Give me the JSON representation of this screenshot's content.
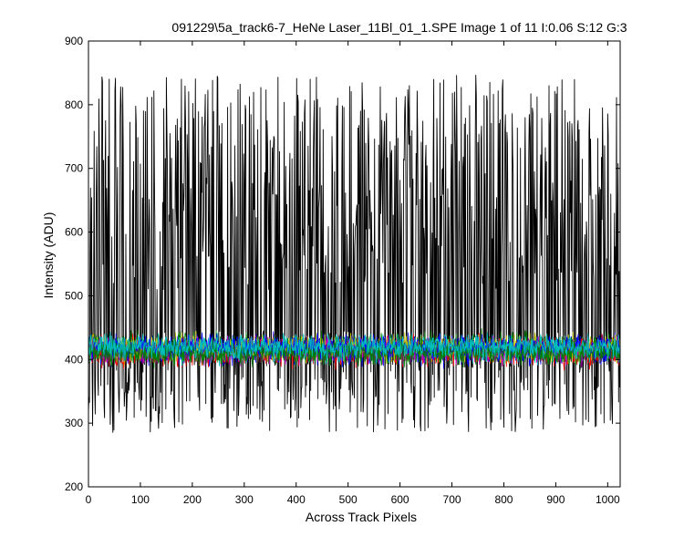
{
  "chart_data": {
    "type": "line",
    "title": "091229\\5a_track6-7_HeNe Laser_11Bl_01_1.SPE  Image 1 of 11  I:0.06  S:12  G:3",
    "xlabel": "Across Track Pixels",
    "ylabel": "Intensity (ADU)",
    "xlim": [
      0,
      1024
    ],
    "ylim": [
      200,
      900
    ],
    "xticks": [
      0,
      100,
      200,
      300,
      400,
      500,
      600,
      700,
      800,
      900,
      1000
    ],
    "yticks": [
      200,
      300,
      400,
      500,
      600,
      700,
      800,
      900
    ],
    "grid": false,
    "legend": "none",
    "n_points": 1024,
    "series": [
      {
        "color": "#000000",
        "baseline": 560,
        "spread": 260,
        "min": 285,
        "max": 865
      },
      {
        "color": "#0000ff",
        "baseline": 415,
        "spread": 22,
        "min": 380,
        "max": 455
      },
      {
        "color": "#008000",
        "baseline": 418,
        "spread": 22,
        "min": 380,
        "max": 460
      },
      {
        "color": "#ff0000",
        "baseline": 412,
        "spread": 22,
        "min": 380,
        "max": 455
      },
      {
        "color": "#00bfbf",
        "baseline": 416,
        "spread": 20,
        "min": 380,
        "max": 455
      },
      {
        "color": "#bf00bf",
        "baseline": 414,
        "spread": 20,
        "min": 380,
        "max": 450
      },
      {
        "color": "#bfbf00",
        "baseline": 417,
        "spread": 20,
        "min": 380,
        "max": 455
      },
      {
        "color": "#404040",
        "baseline": 413,
        "spread": 18,
        "min": 380,
        "max": 450
      },
      {
        "color": "#0000ff",
        "baseline": 419,
        "spread": 18,
        "min": 380,
        "max": 455
      },
      {
        "color": "#008000",
        "baseline": 411,
        "spread": 18,
        "min": 380,
        "max": 450
      },
      {
        "color": "#00bfbf",
        "baseline": 420,
        "spread": 18,
        "min": 380,
        "max": 455
      }
    ]
  }
}
